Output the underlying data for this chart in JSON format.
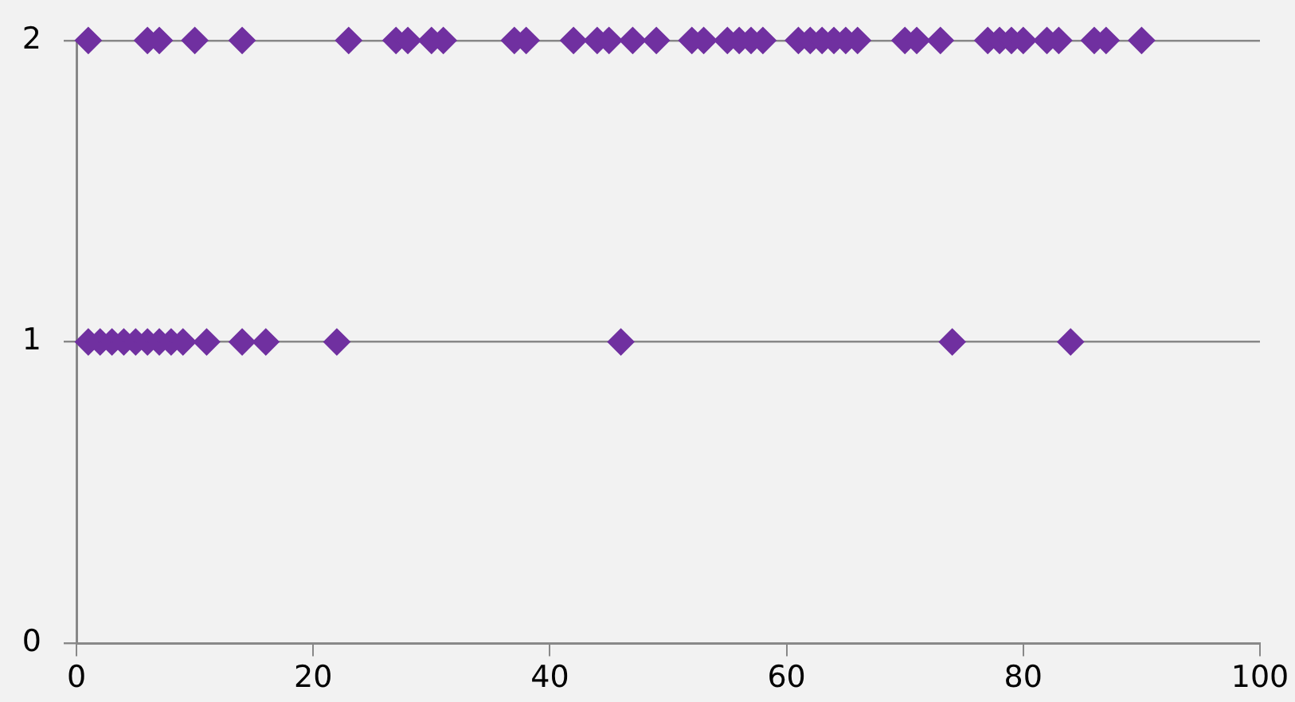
{
  "chart_data": {
    "type": "scatter",
    "marker": "diamond",
    "grid": "y",
    "legend": false,
    "xlim": [
      0,
      100
    ],
    "xticks": [
      0,
      20,
      40,
      60,
      80,
      100
    ],
    "ylim": [
      0,
      2
    ],
    "yticks": [
      0,
      1,
      2
    ],
    "series": [
      {
        "color": "#7030a0",
        "x": [
          1,
          6,
          7,
          10,
          14,
          23,
          27,
          28,
          30,
          31,
          37,
          38,
          42,
          44,
          45,
          47,
          49,
          52,
          53,
          55,
          56,
          57,
          58,
          61,
          62,
          63,
          64,
          65,
          66,
          70,
          71,
          73,
          77,
          78,
          79,
          80,
          82,
          83,
          86,
          87,
          90
        ],
        "values": [
          2,
          2,
          2,
          2,
          2,
          2,
          2,
          2,
          2,
          2,
          2,
          2,
          2,
          2,
          2,
          2,
          2,
          2,
          2,
          2,
          2,
          2,
          2,
          2,
          2,
          2,
          2,
          2,
          2,
          2,
          2,
          2,
          2,
          2,
          2,
          2,
          2,
          2,
          2,
          2,
          2
        ]
      },
      {
        "color": "#7030a0",
        "x": [
          1,
          2,
          3,
          4,
          5,
          6,
          7,
          8,
          9,
          11,
          14,
          16,
          22,
          46,
          74,
          84
        ],
        "values": [
          1,
          1,
          1,
          1,
          1,
          1,
          1,
          1,
          1,
          1,
          1,
          1,
          1,
          1,
          1,
          1
        ]
      }
    ]
  }
}
